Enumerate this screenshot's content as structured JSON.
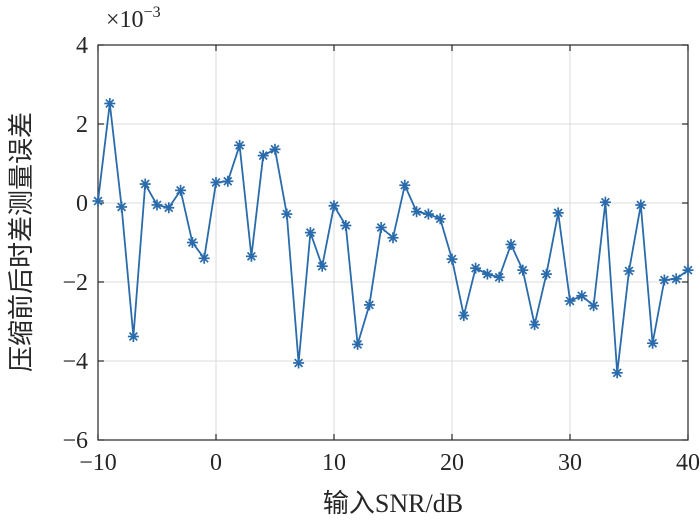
{
  "chart_data": {
    "type": "line",
    "xlabel": "输入SNR/dB",
    "ylabel": "压缩前后时差测量误差",
    "exponent": {
      "base": "×10",
      "power": "−3"
    },
    "xlim": [
      -10,
      40
    ],
    "ylim": [
      -6,
      4
    ],
    "xticks": [
      -10,
      0,
      10,
      20,
      30,
      40
    ],
    "yticks": [
      -6,
      -4,
      -2,
      0,
      2,
      4
    ],
    "xtick_labels": [
      "−10",
      "0",
      "10",
      "20",
      "30",
      "40"
    ],
    "ytick_labels": [
      "−6",
      "−4",
      "−2",
      "0",
      "2",
      "4"
    ],
    "grid": true,
    "marker": "asterisk",
    "color": "#2a6bab",
    "series": [
      {
        "x": [
          -10,
          -9,
          -8,
          -7,
          -6,
          -5,
          -4,
          -3,
          -2,
          -1,
          0,
          1,
          2,
          3,
          4,
          5,
          6,
          7,
          8,
          9,
          10,
          11,
          12,
          13,
          14,
          15,
          16,
          17,
          18,
          19,
          20,
          21,
          22,
          23,
          24,
          25,
          26,
          27,
          28,
          29,
          30,
          31,
          32,
          33,
          34,
          35,
          36,
          37,
          38,
          39,
          40
        ],
        "values": [
          0.05,
          2.52,
          -0.1,
          -3.38,
          0.48,
          -0.05,
          -0.12,
          0.32,
          -1.0,
          -1.4,
          0.52,
          0.55,
          1.46,
          -1.35,
          1.2,
          1.36,
          -0.28,
          -4.05,
          -0.75,
          -1.6,
          -0.07,
          -0.57,
          -3.58,
          -2.58,
          -0.62,
          -0.88,
          0.45,
          -0.22,
          -0.28,
          -0.4,
          -1.42,
          -2.85,
          -1.65,
          -1.8,
          -1.88,
          -1.05,
          -1.7,
          -3.08,
          -1.8,
          -0.25,
          -2.48,
          -2.35,
          -2.6,
          0.02,
          -4.3,
          -1.72,
          -0.05,
          -3.55,
          -1.95,
          -1.92,
          -1.7
        ]
      }
    ]
  }
}
